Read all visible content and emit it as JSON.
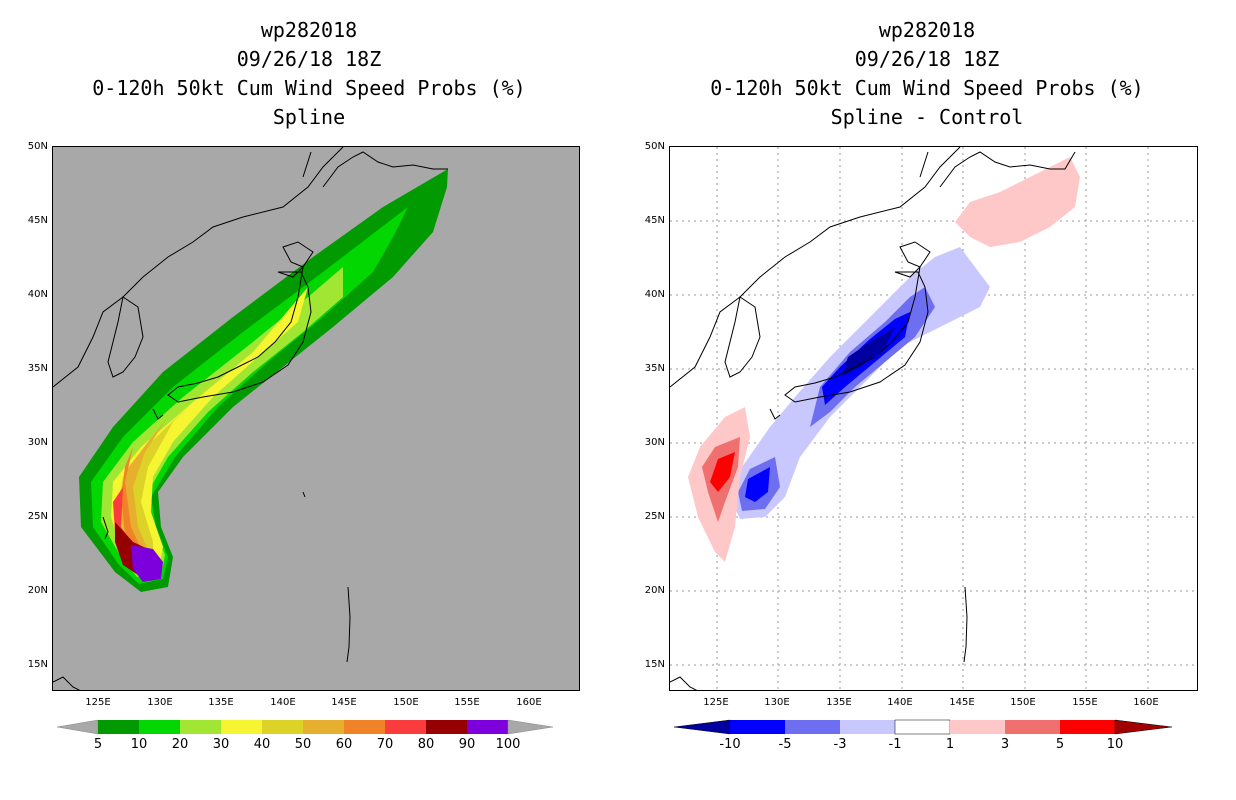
{
  "left_panel": {
    "storm_id": "wp282018",
    "datetime": "09/26/18 18Z",
    "product": "0-120h 50kt Cum Wind Speed Probs (%)",
    "subtitle": "Spline",
    "colorbar_labels": [
      "5",
      "10",
      "20",
      "30",
      "40",
      "50",
      "60",
      "70",
      "80",
      "90",
      "100"
    ],
    "colors": [
      "#019b01",
      "#02d702",
      "#a0e632",
      "#f5f532",
      "#dcd228",
      "#e6af2d",
      "#f08228",
      "#fa3c3c",
      "#960000",
      "#7d00dc"
    ]
  },
  "right_panel": {
    "storm_id": "wp282018",
    "datetime": "09/26/18 18Z",
    "product": "0-120h 50kt Cum Wind Speed Probs (%)",
    "subtitle": "Spline - Control",
    "colorbar_labels": [
      "-10",
      "-5",
      "-3",
      "-1",
      "1",
      "3",
      "5",
      "10"
    ],
    "colors": [
      "#0000a0",
      "#0000ff",
      "#6e6ef0",
      "#c8c8ff",
      "#ffffff",
      "#ffc8c8",
      "#f07070",
      "#ff0000",
      "#a00000"
    ]
  },
  "lat_labels": [
    "50N",
    "45N",
    "40N",
    "35N",
    "30N",
    "25N",
    "20N",
    "15N"
  ],
  "lon_labels": [
    "125E",
    "130E",
    "135E",
    "140E",
    "145E",
    "150E",
    "155E",
    "160E"
  ]
}
